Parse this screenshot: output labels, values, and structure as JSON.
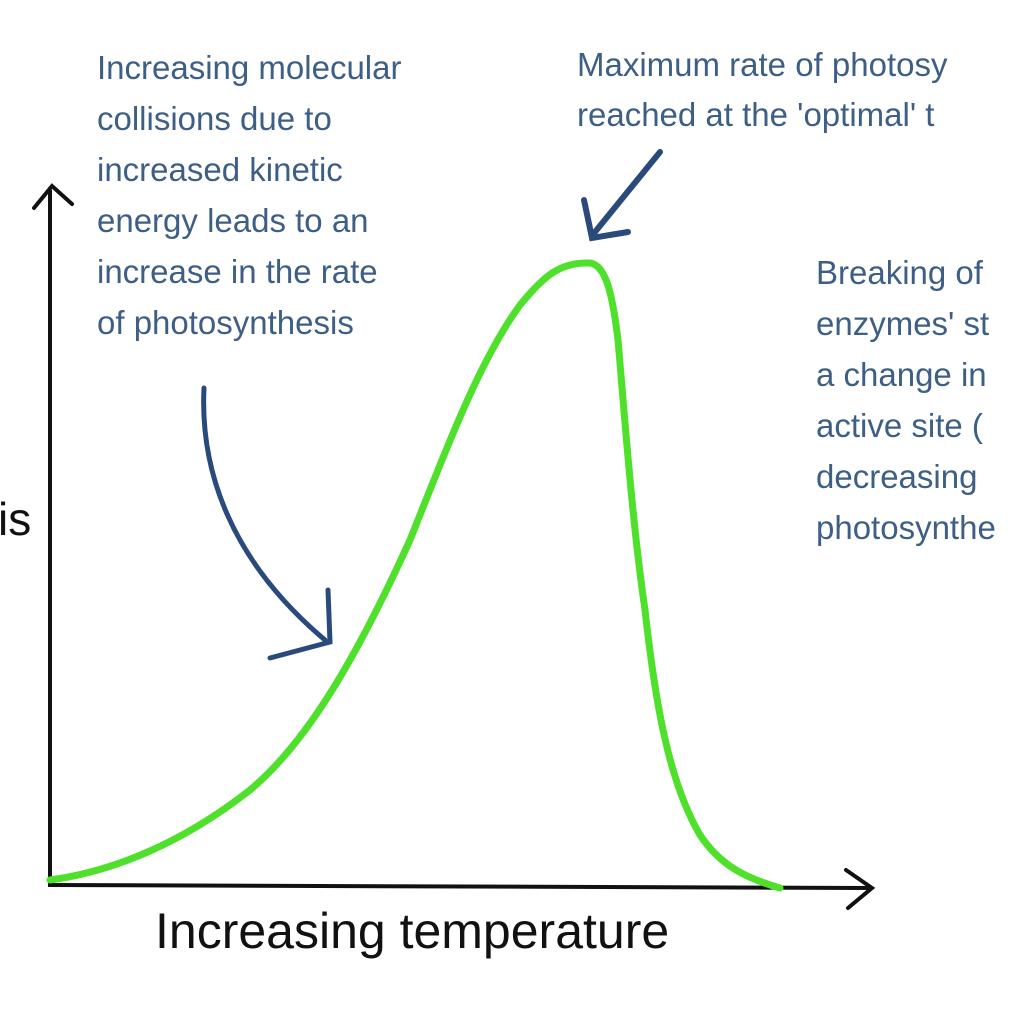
{
  "diagram": {
    "annotations": {
      "rising": [
        "Increasing molecular",
        "collisions due to",
        "increased kinetic",
        "energy leads to an",
        "increase in the rate",
        "of photosynthesis"
      ],
      "peak": [
        "Maximum rate of photosy",
        "reached at the 'optimal' t"
      ],
      "falling": [
        "Breaking of",
        "enzymes' st",
        "a change in",
        "active site (",
        "decreasing",
        "photosynthe"
      ]
    },
    "y_axis_label_visible": "is",
    "x_axis_label": "Increasing temperature",
    "colors": {
      "curve": "#4ee02a",
      "text": "#3d5f86",
      "arrows": "#2b4a7c",
      "axes": "#111111"
    }
  }
}
